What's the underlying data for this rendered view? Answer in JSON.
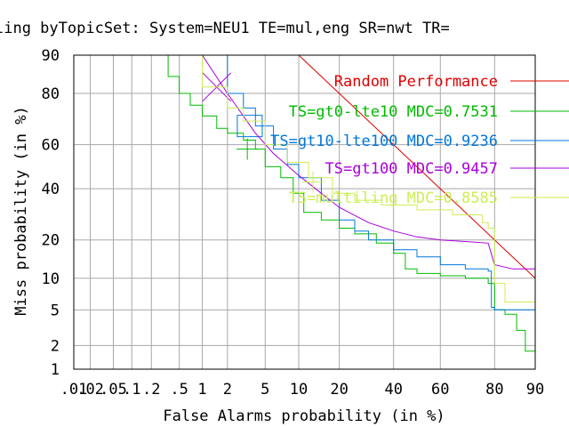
{
  "chart_data": {
    "type": "line",
    "subtype": "DET curve (normal-deviate scale)",
    "title": "ling byTopicSet: System=NEU1 TE=mul,eng SR=nwt TR=",
    "xlabel": "False Alarms probability (in %)",
    "ylabel": "Miss probability (in %)",
    "xlim": [
      0.01,
      90
    ],
    "ylim": [
      1,
      90
    ],
    "x_ticks": [
      {
        "v": 0.01,
        "label": ".01"
      },
      {
        "v": 0.02,
        "label": ".02"
      },
      {
        "v": 0.05,
        "label": ".05"
      },
      {
        "v": 0.1,
        "label": ".1"
      },
      {
        "v": 0.2,
        "label": ".2"
      },
      {
        "v": 0.5,
        "label": ".5"
      },
      {
        "v": 1,
        "label": "1"
      },
      {
        "v": 2,
        "label": "2"
      },
      {
        "v": 5,
        "label": "5"
      },
      {
        "v": 10,
        "label": "10"
      },
      {
        "v": 20,
        "label": "20"
      },
      {
        "v": 40,
        "label": "40"
      },
      {
        "v": 60,
        "label": "60"
      },
      {
        "v": 80,
        "label": "80"
      },
      {
        "v": 90,
        "label": "90"
      }
    ],
    "y_ticks": [
      {
        "v": 1,
        "label": "1"
      },
      {
        "v": 2,
        "label": "2"
      },
      {
        "v": 5,
        "label": "5"
      },
      {
        "v": 10,
        "label": "10"
      },
      {
        "v": 20,
        "label": "20"
      },
      {
        "v": 40,
        "label": "40"
      },
      {
        "v": 60,
        "label": "60"
      },
      {
        "v": 80,
        "label": "80"
      },
      {
        "v": 90,
        "label": "90"
      }
    ],
    "grid": true,
    "legend_position": "right, overlapping plot",
    "series": [
      {
        "name": "Random Performance",
        "color": "#e00000",
        "points": [
          [
            10,
            90
          ],
          [
            20,
            80
          ],
          [
            40,
            60
          ],
          [
            60,
            40
          ],
          [
            80,
            20
          ],
          [
            90,
            10
          ]
        ]
      },
      {
        "name": "TS=gt0-lte10 MDC=0.7531",
        "color": "#00bb00",
        "marker": {
          "pfa": 3.3,
          "pmiss": 58
        },
        "points": [
          [
            0.28,
            90
          ],
          [
            0.35,
            85
          ],
          [
            0.5,
            80
          ],
          [
            0.7,
            76
          ],
          [
            1,
            72
          ],
          [
            1.5,
            67
          ],
          [
            2,
            65
          ],
          [
            3,
            62
          ],
          [
            4,
            58
          ],
          [
            5,
            50
          ],
          [
            7,
            45
          ],
          [
            9,
            38
          ],
          [
            11,
            30
          ],
          [
            15,
            27
          ],
          [
            20,
            24
          ],
          [
            25,
            22
          ],
          [
            33,
            19
          ],
          [
            40,
            16
          ],
          [
            45,
            12
          ],
          [
            50,
            11
          ],
          [
            60,
            10.5
          ],
          [
            70,
            10
          ],
          [
            78,
            9
          ],
          [
            80,
            5
          ],
          [
            83,
            4.5
          ],
          [
            86,
            3
          ],
          [
            88,
            1.7
          ],
          [
            90,
            1.7
          ]
        ]
      },
      {
        "name": "TS=gt10-lte100 MDC=0.9236",
        "color": "#0077dd",
        "marker": {
          "pfa": 3.5,
          "pmiss": 68
        },
        "points": [
          [
            1,
            90
          ],
          [
            2,
            80
          ],
          [
            3,
            75
          ],
          [
            4,
            68
          ],
          [
            6,
            58
          ],
          [
            8,
            51
          ],
          [
            10,
            45
          ],
          [
            15,
            35
          ],
          [
            20,
            27
          ],
          [
            25,
            23
          ],
          [
            30,
            20
          ],
          [
            40,
            17
          ],
          [
            50,
            15
          ],
          [
            60,
            13
          ],
          [
            70,
            12
          ],
          [
            78,
            11.5
          ],
          [
            79,
            5.3
          ],
          [
            80,
            5
          ],
          [
            85,
            5
          ],
          [
            90,
            5
          ]
        ]
      },
      {
        "name": "TS=gt100 MDC=0.9457",
        "color": "#aa00dd",
        "marker": {
          "pfa": 1.5,
          "pmiss": 82
        },
        "points": [
          [
            1,
            90
          ],
          [
            2,
            80
          ],
          [
            4,
            65
          ],
          [
            6,
            56
          ],
          [
            10,
            46
          ],
          [
            15,
            38
          ],
          [
            20,
            32
          ],
          [
            30,
            26
          ],
          [
            40,
            23
          ],
          [
            50,
            21
          ],
          [
            60,
            20
          ],
          [
            70,
            19.5
          ],
          [
            78,
            19
          ],
          [
            80,
            13
          ],
          [
            85,
            12
          ],
          [
            90,
            12
          ]
        ]
      },
      {
        "name": "TS=multiling MDC=0.8585",
        "color": "#ccee55",
        "marker": {
          "pfa": 13,
          "pmiss": 43
        },
        "points": [
          [
            0.5,
            90
          ],
          [
            1,
            82
          ],
          [
            2,
            75
          ],
          [
            3,
            70
          ],
          [
            5,
            60
          ],
          [
            8,
            52
          ],
          [
            12,
            45
          ],
          [
            18,
            38
          ],
          [
            25,
            35
          ],
          [
            35,
            33
          ],
          [
            50,
            31
          ],
          [
            65,
            29
          ],
          [
            76,
            26
          ],
          [
            78,
            24
          ],
          [
            80,
            9
          ],
          [
            83,
            6
          ],
          [
            87,
            6
          ],
          [
            90,
            6
          ]
        ]
      }
    ]
  }
}
